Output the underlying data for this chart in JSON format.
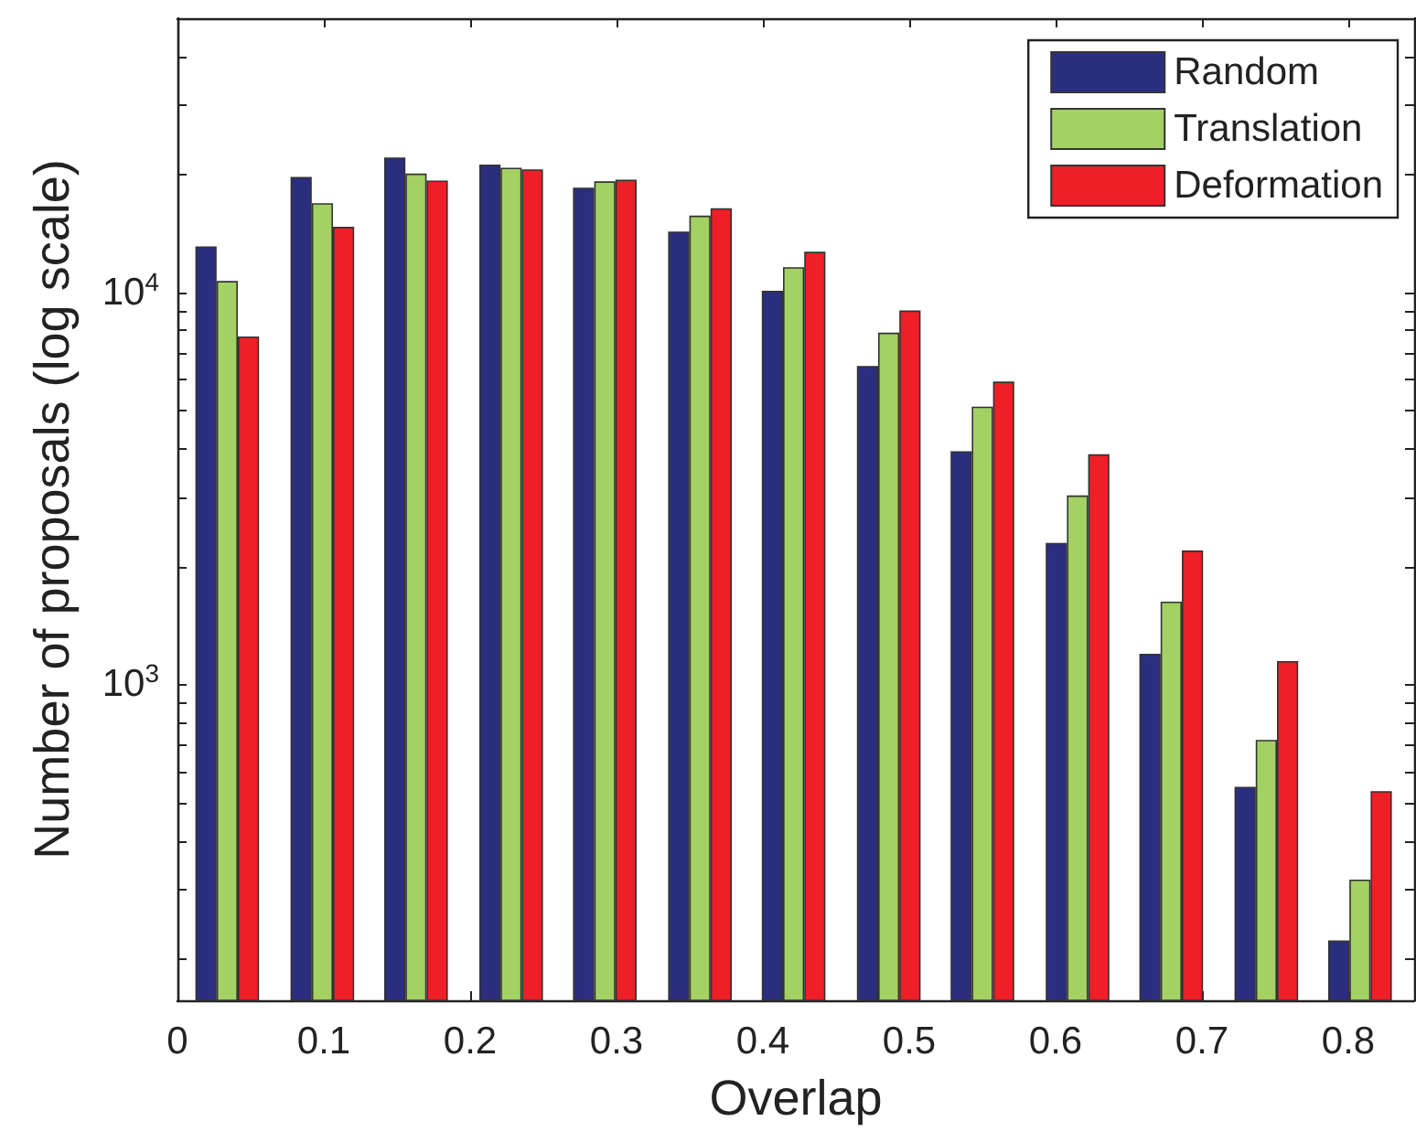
{
  "chart_data": {
    "type": "bar",
    "xlabel": "Overlap",
    "ylabel": "Number of proposals (log scale)",
    "x": [
      0.034,
      0.099,
      0.163,
      0.228,
      0.292,
      0.357,
      0.421,
      0.486,
      0.55,
      0.615,
      0.679,
      0.744,
      0.808
    ],
    "series": [
      {
        "name": "Random",
        "color": "#2b2e7f",
        "values": [
          13100,
          19700,
          22100,
          21200,
          18500,
          14300,
          10100,
          6500,
          3940,
          2300,
          1200,
          550,
          223
        ]
      },
      {
        "name": "Translation",
        "color": "#a3d164",
        "values": [
          10700,
          16900,
          20100,
          20800,
          19200,
          15700,
          11600,
          7900,
          5120,
          3040,
          1630,
          724,
          319
        ]
      },
      {
        "name": "Deformation",
        "color": "#ee1f26",
        "values": [
          7730,
          14700,
          19300,
          20600,
          19400,
          16400,
          12700,
          9000,
          5930,
          3870,
          2200,
          1150,
          536
        ]
      }
    ],
    "xlim": [
      0,
      0.845
    ],
    "xticks": [
      0,
      0.1,
      0.2,
      0.3,
      0.4,
      0.5,
      0.6,
      0.7,
      0.8
    ],
    "ylim": [
      157,
      50000
    ],
    "yticks": [
      {
        "value": 200,
        "label": null
      },
      {
        "value": 300,
        "label": null
      },
      {
        "value": 400,
        "label": null
      },
      {
        "value": 500,
        "label": null
      },
      {
        "value": 600,
        "label": null
      },
      {
        "value": 700,
        "label": null
      },
      {
        "value": 800,
        "label": null
      },
      {
        "value": 900,
        "label": null
      },
      {
        "value": 1000,
        "label": "10$^{3}$"
      },
      {
        "value": 2000,
        "label": null
      },
      {
        "value": 3000,
        "label": null
      },
      {
        "value": 4000,
        "label": null
      },
      {
        "value": 5000,
        "label": null
      },
      {
        "value": 6000,
        "label": null
      },
      {
        "value": 7000,
        "label": null
      },
      {
        "value": 8000,
        "label": null
      },
      {
        "value": 9000,
        "label": null
      },
      {
        "value": 10000,
        "label": "10$^{4}$"
      },
      {
        "value": 20000,
        "label": null
      },
      {
        "value": 30000,
        "label": null
      },
      {
        "value": 40000,
        "label": null
      }
    ],
    "log": "y",
    "grid": false,
    "legend": "top right"
  }
}
